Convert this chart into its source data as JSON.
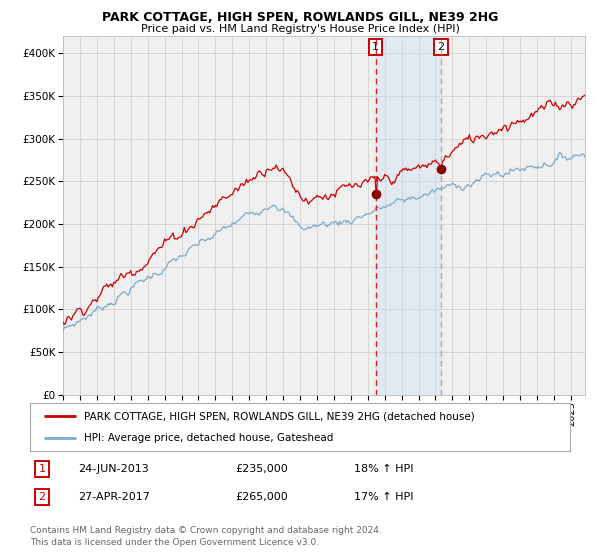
{
  "title": "PARK COTTAGE, HIGH SPEN, ROWLANDS GILL, NE39 2HG",
  "subtitle": "Price paid vs. HM Land Registry's House Price Index (HPI)",
  "legend_line1": "PARK COTTAGE, HIGH SPEN, ROWLANDS GILL, NE39 2HG (detached house)",
  "legend_line2": "HPI: Average price, detached house, Gateshead",
  "transaction1_price": 235000,
  "transaction1_label": "24-JUN-2013",
  "transaction1_pct": "18% ↑ HPI",
  "transaction2_price": 265000,
  "transaction2_label": "27-APR-2017",
  "transaction2_pct": "17% ↑ HPI",
  "red_line_color": "#cc0000",
  "blue_line_color": "#7aaacc",
  "background_color": "#ffffff",
  "plot_bg_color": "#f0f0f0",
  "grid_color": "#cccccc",
  "shade_color": "#ccddf0",
  "vline1_color": "#cc0000",
  "vline2_color": "#999999",
  "footer": "Contains HM Land Registry data © Crown copyright and database right 2024.\nThis data is licensed under the Open Government Licence v3.0.",
  "ylim": [
    0,
    420000
  ],
  "yticks": [
    0,
    50000,
    100000,
    150000,
    200000,
    250000,
    300000,
    350000,
    400000
  ],
  "start_year": 1995,
  "end_year": 2025,
  "t1_year": 2013.46,
  "t2_year": 2017.32
}
